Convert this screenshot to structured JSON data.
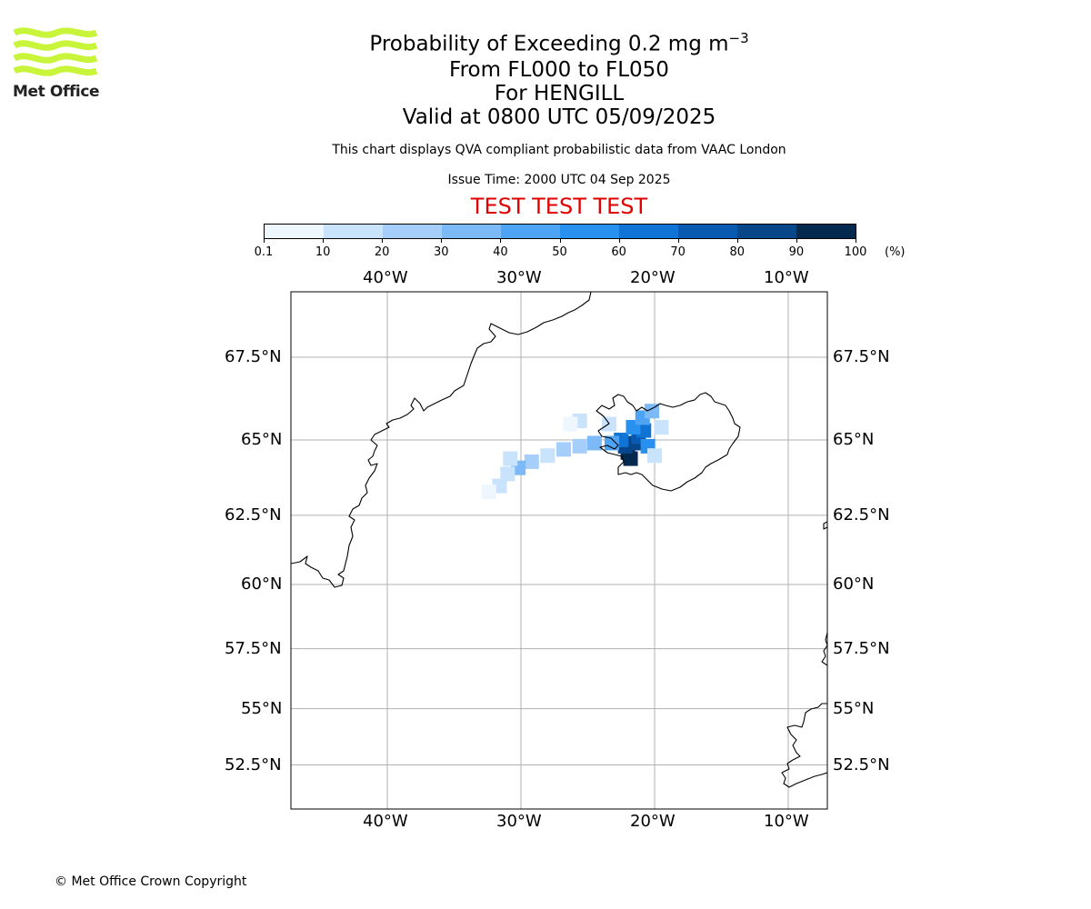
{
  "header": {
    "title_prefix": "Probability of Exceeding 0.2 mg m",
    "title_exponent": "−3",
    "line2": "From FL000 to FL050",
    "line3": "For HENGILL",
    "line4": "Valid at 0800 UTC 05/09/2025",
    "subtitle": "This chart displays QVA compliant probabilistic data from VAAC London",
    "issue_time": "Issue Time: 2000 UTC 04 Sep 2025",
    "banner": "TEST TEST TEST"
  },
  "logo": {
    "text": "Met Office",
    "color": "#c8f53a"
  },
  "footer": {
    "copyright": "© Met Office Crown Copyright"
  },
  "colorbar": {
    "unit": "(%)",
    "ticks": [
      "0.1",
      "10",
      "20",
      "30",
      "40",
      "50",
      "60",
      "70",
      "80",
      "90",
      "100"
    ],
    "colors": [
      "#eef6fe",
      "#c9e3fc",
      "#a5cffa",
      "#7bbaf7",
      "#4ea4f4",
      "#2890ee",
      "#0f74d6",
      "#0859b0",
      "#064689",
      "#03294f"
    ]
  },
  "map": {
    "lon_labels": [
      "40°W",
      "30°W",
      "20°W",
      "10°W"
    ],
    "lat_labels": [
      "67.5°N",
      "65°N",
      "62.5°N",
      "60°N",
      "57.5°N",
      "55°N",
      "52.5°N"
    ],
    "gridline_color": "#b0b0b0",
    "coast_color": "#000000",
    "ash_cells": [
      {
        "lon": -22.0,
        "lat": 64.6,
        "prob": 95
      },
      {
        "lon": -21.8,
        "lat": 64.4,
        "prob": 92
      },
      {
        "lon": -22.2,
        "lat": 64.8,
        "prob": 85
      },
      {
        "lon": -21.5,
        "lat": 64.9,
        "prob": 80
      },
      {
        "lon": -21.2,
        "lat": 65.1,
        "prob": 72
      },
      {
        "lon": -22.5,
        "lat": 65.0,
        "prob": 68
      },
      {
        "lon": -20.8,
        "lat": 65.3,
        "prob": 60
      },
      {
        "lon": -21.6,
        "lat": 65.4,
        "prob": 55
      },
      {
        "lon": -20.5,
        "lat": 64.8,
        "prob": 52
      },
      {
        "lon": -23.2,
        "lat": 64.9,
        "prob": 48
      },
      {
        "lon": -20.9,
        "lat": 65.7,
        "prob": 40
      },
      {
        "lon": -20.2,
        "lat": 65.9,
        "prob": 30
      },
      {
        "lon": -24.5,
        "lat": 64.9,
        "prob": 35
      },
      {
        "lon": -25.6,
        "lat": 64.8,
        "prob": 28
      },
      {
        "lon": -26.8,
        "lat": 64.7,
        "prob": 22
      },
      {
        "lon": -28.0,
        "lat": 64.5,
        "prob": 18
      },
      {
        "lon": -29.2,
        "lat": 64.3,
        "prob": 20
      },
      {
        "lon": -30.2,
        "lat": 64.1,
        "prob": 30
      },
      {
        "lon": -31.0,
        "lat": 63.9,
        "prob": 15
      },
      {
        "lon": -30.8,
        "lat": 64.4,
        "prob": 12
      },
      {
        "lon": -31.6,
        "lat": 63.5,
        "prob": 10
      },
      {
        "lon": -32.4,
        "lat": 63.3,
        "prob": 6
      },
      {
        "lon": -25.6,
        "lat": 65.6,
        "prob": 10
      },
      {
        "lon": -26.3,
        "lat": 65.5,
        "prob": 8
      },
      {
        "lon": -23.4,
        "lat": 65.5,
        "prob": 12
      },
      {
        "lon": -19.5,
        "lat": 65.4,
        "prob": 15
      },
      {
        "lon": -20.0,
        "lat": 64.5,
        "prob": 18
      }
    ]
  }
}
